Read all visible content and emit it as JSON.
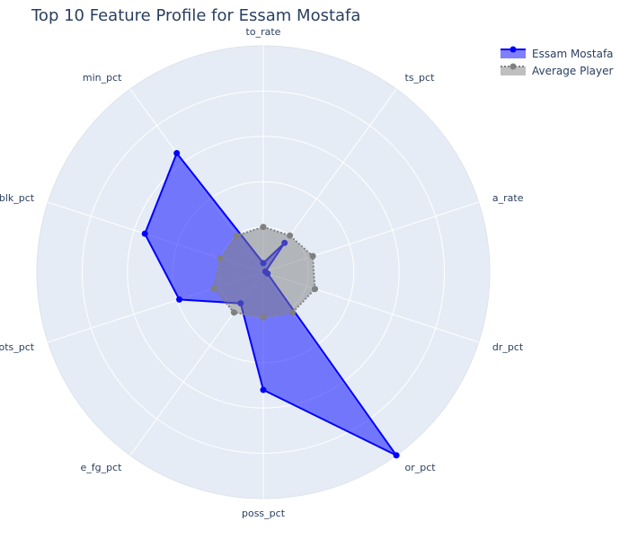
{
  "chart_data": {
    "type": "radar",
    "title": "Top 10 Feature Profile for Essam Mostafa",
    "axes": [
      "to_rate",
      "ts_pct",
      "a_rate",
      "dr_pct",
      "or_pct",
      "poss_pct",
      "e_fg_pct",
      "shots_pct",
      "blk_pct",
      "min_pct"
    ],
    "range": [
      0,
      1
    ],
    "gridlines": [
      0.2,
      0.4,
      0.6,
      0.8,
      1.0
    ],
    "legend_position": "top-right",
    "series": [
      {
        "name": "Essam Mostafa",
        "color": "#0000ff",
        "fill": "rgba(0,0,255,0.5)",
        "line_style": "solid",
        "values": [
          0.04,
          0.16,
          0.01,
          0.02,
          1.0,
          0.52,
          0.17,
          0.39,
          0.55,
          0.65
        ]
      },
      {
        "name": "Average Player",
        "color": "#808080",
        "fill": "rgba(128,128,128,0.5)",
        "line_style": "dotted",
        "values": [
          0.2,
          0.2,
          0.23,
          0.24,
          0.22,
          0.2,
          0.22,
          0.23,
          0.2,
          0.2
        ]
      }
    ]
  }
}
